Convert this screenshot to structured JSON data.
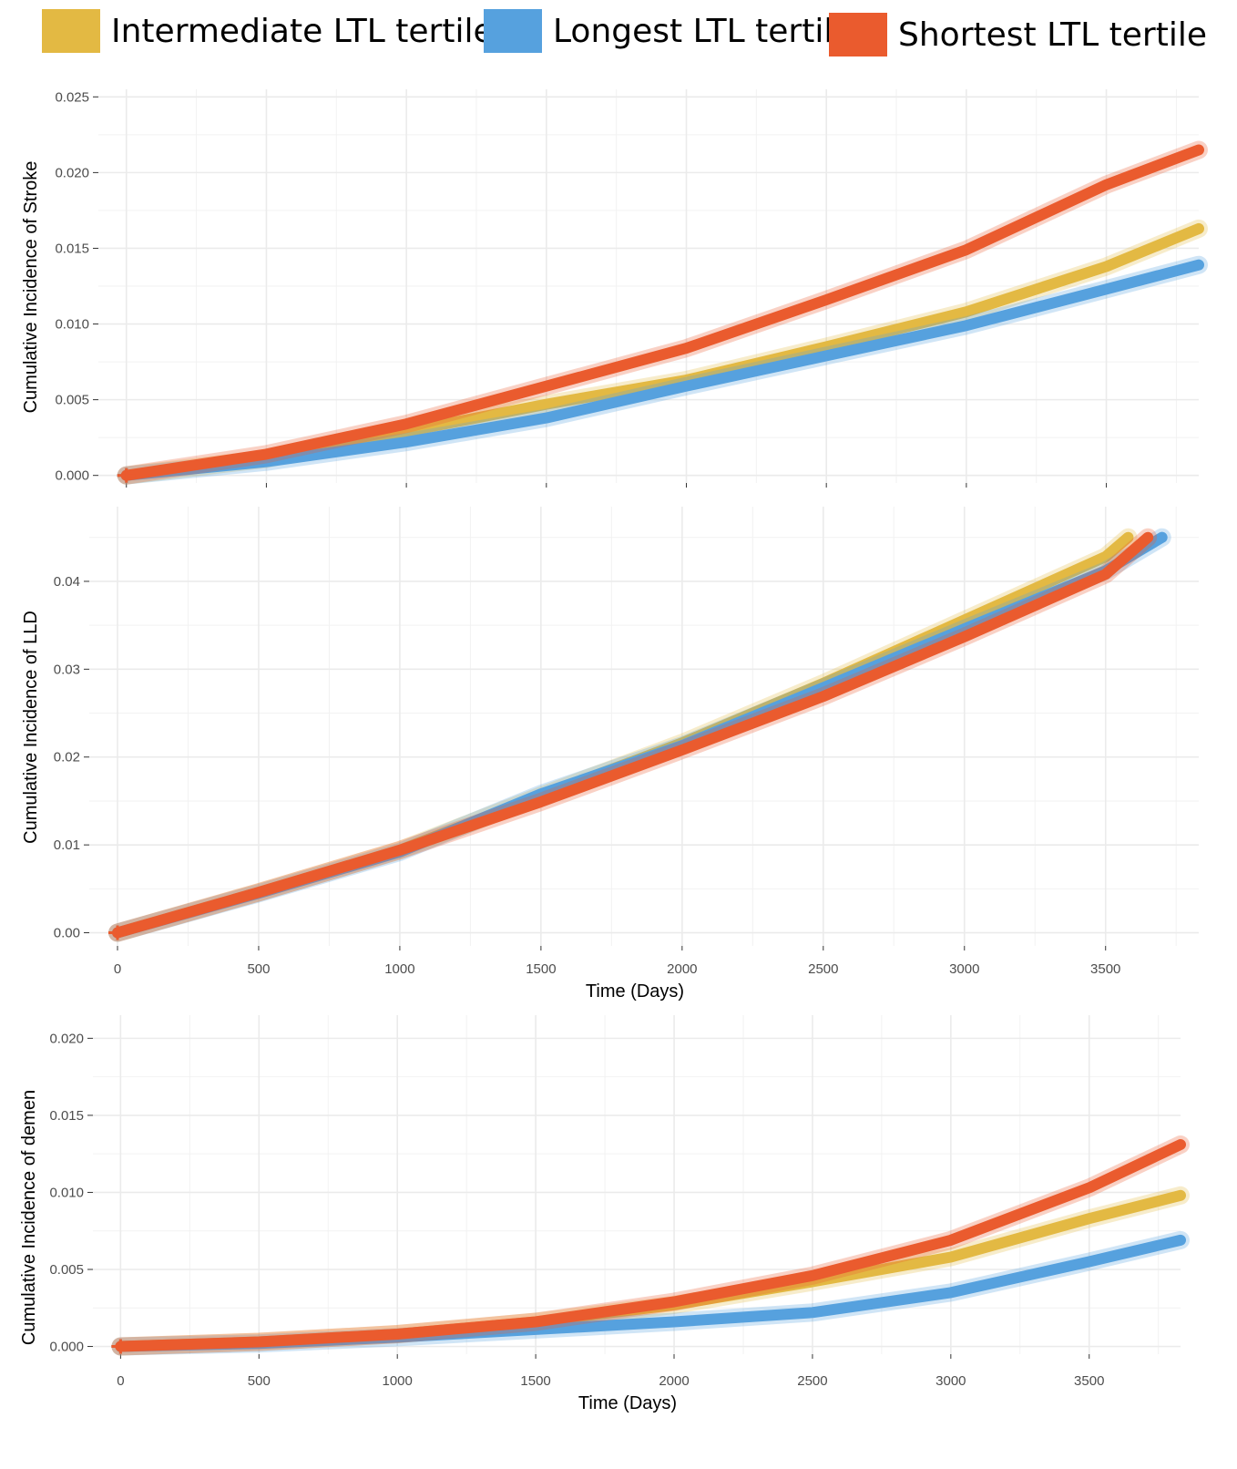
{
  "legend": {
    "items": [
      {
        "label": "Intermediate LTL tertile",
        "color": "#e3b943"
      },
      {
        "label": "Longest LTL tertile",
        "color": "#56a1de"
      },
      {
        "label": "Shortest LTL tertile",
        "color": "#ea5b2e"
      }
    ]
  },
  "chart_data": [
    {
      "type": "line",
      "title": "",
      "xlabel": "",
      "ylabel": "Cumulative Incidence of Stroke",
      "xlim": [
        -100,
        3830
      ],
      "ylim": [
        -0.0005,
        0.0255
      ],
      "xticks": [
        0,
        500,
        1000,
        1500,
        2000,
        2500,
        3000,
        3500
      ],
      "show_x_tick_labels": false,
      "yticks": [
        "0.000",
        "0.005",
        "0.010",
        "0.015",
        "0.020",
        "0.025"
      ],
      "series": [
        {
          "name": "Intermediate LTL tertile",
          "color": "#e3b943",
          "x": [
            0,
            500,
            1000,
            1500,
            2000,
            2500,
            3000,
            3500,
            3830
          ],
          "y": [
            0,
            0.0011,
            0.0029,
            0.0047,
            0.0063,
            0.0085,
            0.0108,
            0.0138,
            0.0163
          ]
        },
        {
          "name": "Longest LTL tertile",
          "color": "#56a1de",
          "x": [
            0,
            500,
            1000,
            1500,
            2000,
            2500,
            3000,
            3500,
            3830
          ],
          "y": [
            0,
            0.0009,
            0.0022,
            0.0038,
            0.0059,
            0.0079,
            0.0099,
            0.0123,
            0.0139
          ]
        },
        {
          "name": "Shortest LTL tertile",
          "color": "#ea5b2e",
          "x": [
            0,
            500,
            1000,
            1500,
            2000,
            2500,
            3000,
            3500,
            3830
          ],
          "y": [
            0,
            0.0014,
            0.0034,
            0.0059,
            0.0084,
            0.0116,
            0.0149,
            0.0192,
            0.0215
          ]
        }
      ]
    },
    {
      "type": "line",
      "title": "",
      "xlabel": "Time (Days)",
      "ylabel": "Cumulative Incidence of LLD",
      "xlim": [
        -100,
        3830
      ],
      "ylim": [
        -0.0015,
        0.0485
      ],
      "xticks": [
        0,
        500,
        1000,
        1500,
        2000,
        2500,
        3000,
        3500
      ],
      "show_x_tick_labels": true,
      "yticks": [
        "0.00",
        "0.01",
        "0.02",
        "0.03",
        "0.04"
      ],
      "series": [
        {
          "name": "Intermediate LTL tertile",
          "color": "#e3b943",
          "x": [
            0,
            500,
            1000,
            1500,
            2000,
            2500,
            3000,
            3500,
            3580
          ],
          "y": [
            0,
            0.0046,
            0.0094,
            0.0156,
            0.0216,
            0.0284,
            0.0356,
            0.0428,
            0.045
          ]
        },
        {
          "name": "Longest LTL tertile",
          "color": "#56a1de",
          "x": [
            0,
            500,
            1000,
            1500,
            2000,
            2500,
            3000,
            3500,
            3700
          ],
          "y": [
            0,
            0.0045,
            0.0092,
            0.0158,
            0.0213,
            0.0279,
            0.0346,
            0.0412,
            0.045
          ]
        },
        {
          "name": "Shortest LTL tertile",
          "color": "#ea5b2e",
          "x": [
            0,
            500,
            1000,
            1500,
            2000,
            2500,
            3000,
            3500,
            3650
          ],
          "y": [
            0,
            0.0046,
            0.0094,
            0.0149,
            0.0208,
            0.0269,
            0.0337,
            0.0408,
            0.045
          ]
        }
      ]
    },
    {
      "type": "line",
      "title": "",
      "xlabel": "Time (Days)",
      "ylabel": "Cumulative Incidence of demen",
      "xlim": [
        -100,
        3830
      ],
      "ylim": [
        -0.0005,
        0.0215
      ],
      "xticks": [
        0,
        500,
        1000,
        1500,
        2000,
        2500,
        3000,
        3500
      ],
      "show_x_tick_labels": true,
      "yticks": [
        "0.000",
        "0.005",
        "0.010",
        "0.015",
        "0.020"
      ],
      "series": [
        {
          "name": "Intermediate LTL tertile",
          "color": "#e3b943",
          "x": [
            0,
            500,
            1000,
            1500,
            2000,
            2500,
            3000,
            3500,
            3830
          ],
          "y": [
            0,
            0.0003,
            0.0008,
            0.0016,
            0.0027,
            0.0042,
            0.0058,
            0.0083,
            0.0098
          ]
        },
        {
          "name": "Longest LTL tertile",
          "color": "#56a1de",
          "x": [
            0,
            500,
            1000,
            1500,
            2000,
            2500,
            3000,
            3500,
            3830
          ],
          "y": [
            0,
            0.0002,
            0.0006,
            0.0011,
            0.0016,
            0.0022,
            0.0035,
            0.0055,
            0.0069
          ]
        },
        {
          "name": "Shortest LTL tertile",
          "color": "#ea5b2e",
          "x": [
            0,
            500,
            1000,
            1500,
            2000,
            2500,
            3000,
            3500,
            3830
          ],
          "y": [
            0,
            0.0003,
            0.0008,
            0.0016,
            0.0029,
            0.0046,
            0.0069,
            0.0103,
            0.0131
          ]
        }
      ]
    }
  ]
}
